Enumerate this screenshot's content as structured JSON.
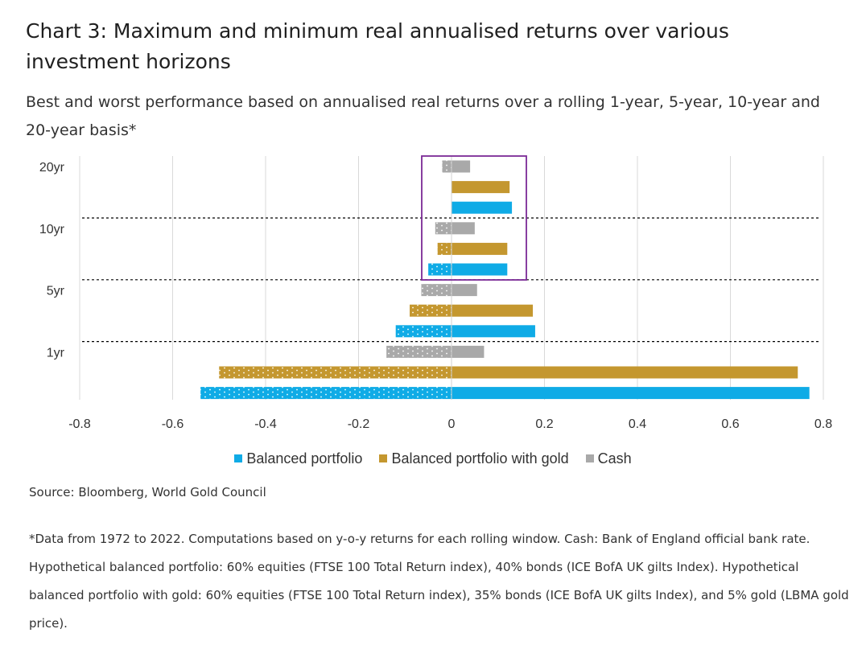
{
  "title": "Chart 3: Maximum and minimum real annualised returns over various investment horizons",
  "subtitle": "Best and worst performance based on annualised real returns over a rolling 1-year, 5-year, 10-year and 20-year basis*",
  "source": "Source: Bloomberg, World Gold Council",
  "footnote": "*Data from 1972 to 2022. Computations based on y-o-y returns for each rolling window. Cash: Bank of England official bank rate. Hypothetical balanced portfolio: 60% equities (FTSE 100 Total Return index), 40% bonds (ICE BofA UK gilts Index). Hypothetical balanced portfolio with gold: 60% equities (FTSE 100 Total Return index), 35% bonds (ICE BofA UK gilts Index), and 5% gold (LBMA gold price).",
  "colors": {
    "balanced": "#0fabe6",
    "gold": "#c4972f",
    "cash": "#a9a9a9",
    "highlight": "#7b2a96"
  },
  "legend": [
    "Balanced portfolio",
    "Balanced portfolio with gold",
    "Cash"
  ],
  "chart_data": {
    "type": "bar",
    "orientation": "horizontal",
    "xlim": [
      -0.8,
      0.8
    ],
    "xticks": [
      "-0.8",
      "-0.6",
      "-0.4",
      "-0.2",
      "0",
      "0.2",
      "0.4",
      "0.6",
      "0.8"
    ],
    "xtick_values": [
      -0.8,
      -0.6,
      -0.4,
      -0.2,
      0,
      0.2,
      0.4,
      0.6,
      0.8
    ],
    "grid": true,
    "legend_position": "bottom",
    "groups": [
      {
        "label": "20yr",
        "rows": [
          {
            "series": "Cash",
            "min": -0.02,
            "max": 0.04
          },
          {
            "series": "Balanced portfolio with gold",
            "min": 0.025,
            "max": 0.125
          },
          {
            "series": "Balanced portfolio",
            "min": 0.02,
            "max": 0.13
          }
        ]
      },
      {
        "label": "10yr",
        "rows": [
          {
            "series": "Cash",
            "min": -0.035,
            "max": 0.05
          },
          {
            "series": "Balanced portfolio with gold",
            "min": -0.03,
            "max": 0.12
          },
          {
            "series": "Balanced portfolio",
            "min": -0.05,
            "max": 0.12
          }
        ]
      },
      {
        "label": "5yr",
        "rows": [
          {
            "series": "Cash",
            "min": -0.065,
            "max": 0.055
          },
          {
            "series": "Balanced portfolio with gold",
            "min": -0.09,
            "max": 0.175
          },
          {
            "series": "Balanced portfolio",
            "min": -0.12,
            "max": 0.18
          }
        ]
      },
      {
        "label": "1yr",
        "rows": [
          {
            "series": "Cash",
            "min": -0.14,
            "max": 0.07
          },
          {
            "series": "Balanced portfolio with gold",
            "min": -0.5,
            "max": 0.745
          },
          {
            "series": "Balanced portfolio",
            "min": -0.54,
            "max": 0.77
          }
        ]
      }
    ],
    "highlight_groups": [
      "20yr",
      "10yr"
    ]
  }
}
